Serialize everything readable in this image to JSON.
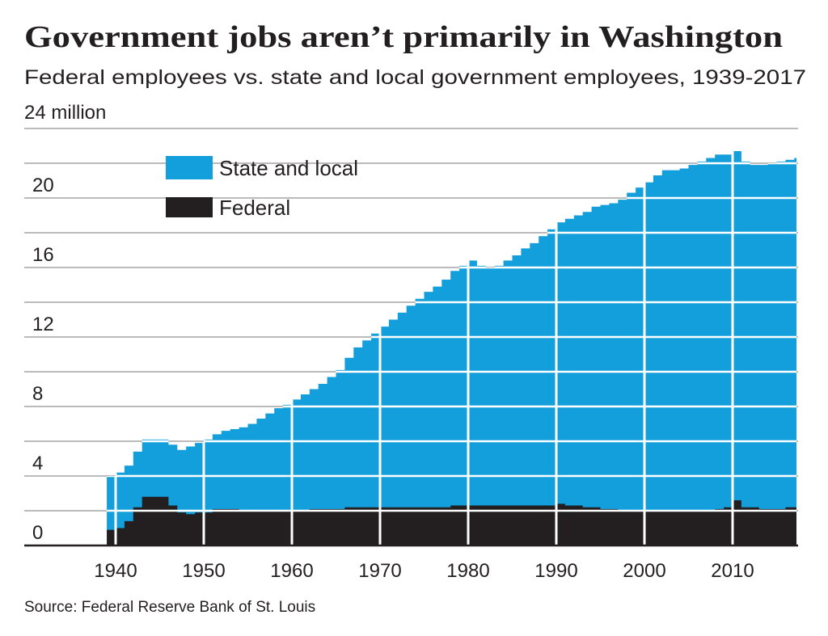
{
  "title": "Government jobs aren’t primarily in Washington",
  "subtitle": "Federal employees vs. state and local government employees, 1939-2017",
  "source": "Source: Federal Reserve Bank of St. Louis",
  "colors": {
    "state_and_local": "#139fdb",
    "federal": "#231f20",
    "grid": "#bbbbbb"
  },
  "chart_data": {
    "type": "area",
    "stacked": true,
    "ylabel": "24 million",
    "ylim": [
      0,
      24
    ],
    "xlim": [
      1930,
      2017.5
    ],
    "grid": true,
    "gridline_step": 2,
    "legend_placement": "top-left",
    "x_ticks": [
      "1940",
      "1950",
      "1960",
      "1970",
      "1980",
      "1990",
      "2000",
      "2010"
    ],
    "y_ticks": [
      "0",
      "4",
      "8",
      "12",
      "16",
      "20"
    ],
    "top_tick_label": "24 million",
    "x_start": 1939,
    "series": [
      {
        "name": "Federal",
        "color": "#231f20",
        "values": [
          0.9,
          1.0,
          1.4,
          2.2,
          2.8,
          2.8,
          2.8,
          2.3,
          1.9,
          1.8,
          1.9,
          1.9,
          2.1,
          2.1,
          2.1,
          2.0,
          2.0,
          2.0,
          2.0,
          2.0,
          2.0,
          2.0,
          2.0,
          2.1,
          2.1,
          2.1,
          2.1,
          2.2,
          2.2,
          2.2,
          2.2,
          2.2,
          2.2,
          2.2,
          2.2,
          2.2,
          2.2,
          2.2,
          2.2,
          2.3,
          2.3,
          2.3,
          2.3,
          2.3,
          2.3,
          2.3,
          2.3,
          2.3,
          2.3,
          2.3,
          2.3,
          2.4,
          2.3,
          2.3,
          2.2,
          2.2,
          2.1,
          2.1,
          2.0,
          2.0,
          2.0,
          2.0,
          2.0,
          2.0,
          2.0,
          2.0,
          2.0,
          2.0,
          2.0,
          2.1,
          2.2,
          2.6,
          2.2,
          2.2,
          2.1,
          2.1,
          2.1,
          2.2,
          2.2
        ]
      },
      {
        "name": "State and local",
        "color": "#139fdb",
        "values": [
          3.1,
          3.2,
          3.2,
          3.2,
          3.3,
          3.3,
          3.3,
          3.5,
          3.6,
          3.9,
          4.0,
          4.2,
          4.3,
          4.5,
          4.6,
          4.8,
          5.0,
          5.3,
          5.6,
          5.9,
          6.1,
          6.4,
          6.7,
          6.9,
          7.2,
          7.6,
          8.0,
          8.6,
          9.2,
          9.6,
          10.0,
          10.4,
          10.8,
          11.2,
          11.6,
          12.0,
          12.4,
          12.7,
          13.1,
          13.5,
          13.8,
          14.1,
          13.8,
          13.7,
          13.8,
          14.1,
          14.4,
          14.8,
          15.1,
          15.5,
          15.9,
          16.2,
          16.5,
          16.7,
          17.0,
          17.3,
          17.5,
          17.6,
          17.9,
          18.3,
          18.6,
          18.9,
          19.3,
          19.6,
          19.6,
          19.7,
          19.9,
          20.1,
          20.3,
          20.4,
          20.3,
          20.1,
          19.9,
          19.7,
          19.8,
          19.9,
          20.0,
          20.0,
          20.1
        ]
      }
    ]
  }
}
